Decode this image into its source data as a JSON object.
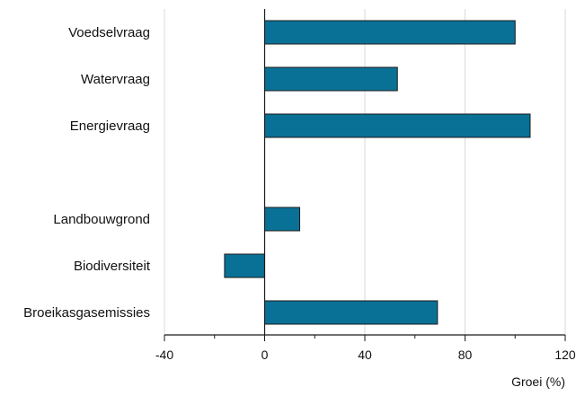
{
  "chart_data": {
    "type": "bar",
    "orientation": "horizontal",
    "categories": [
      "Voedselvraag",
      "Watervraag",
      "Energievraag",
      "",
      "Landbouwgrond",
      "Biodiversiteit",
      "Broeikasgasemissies"
    ],
    "values": [
      100,
      53,
      106,
      null,
      14,
      -16,
      69
    ],
    "xlim": [
      -40,
      120
    ],
    "xticks": [
      -40,
      0,
      40,
      80,
      120
    ],
    "xtick_labels": [
      "-40",
      "0",
      "40",
      "80",
      "120"
    ],
    "xlabel": "Groei (%)",
    "ylabel": "",
    "title": "",
    "grid": "vertical",
    "bar_color": "#0a7196",
    "grid_color": "#d9d9d9"
  }
}
